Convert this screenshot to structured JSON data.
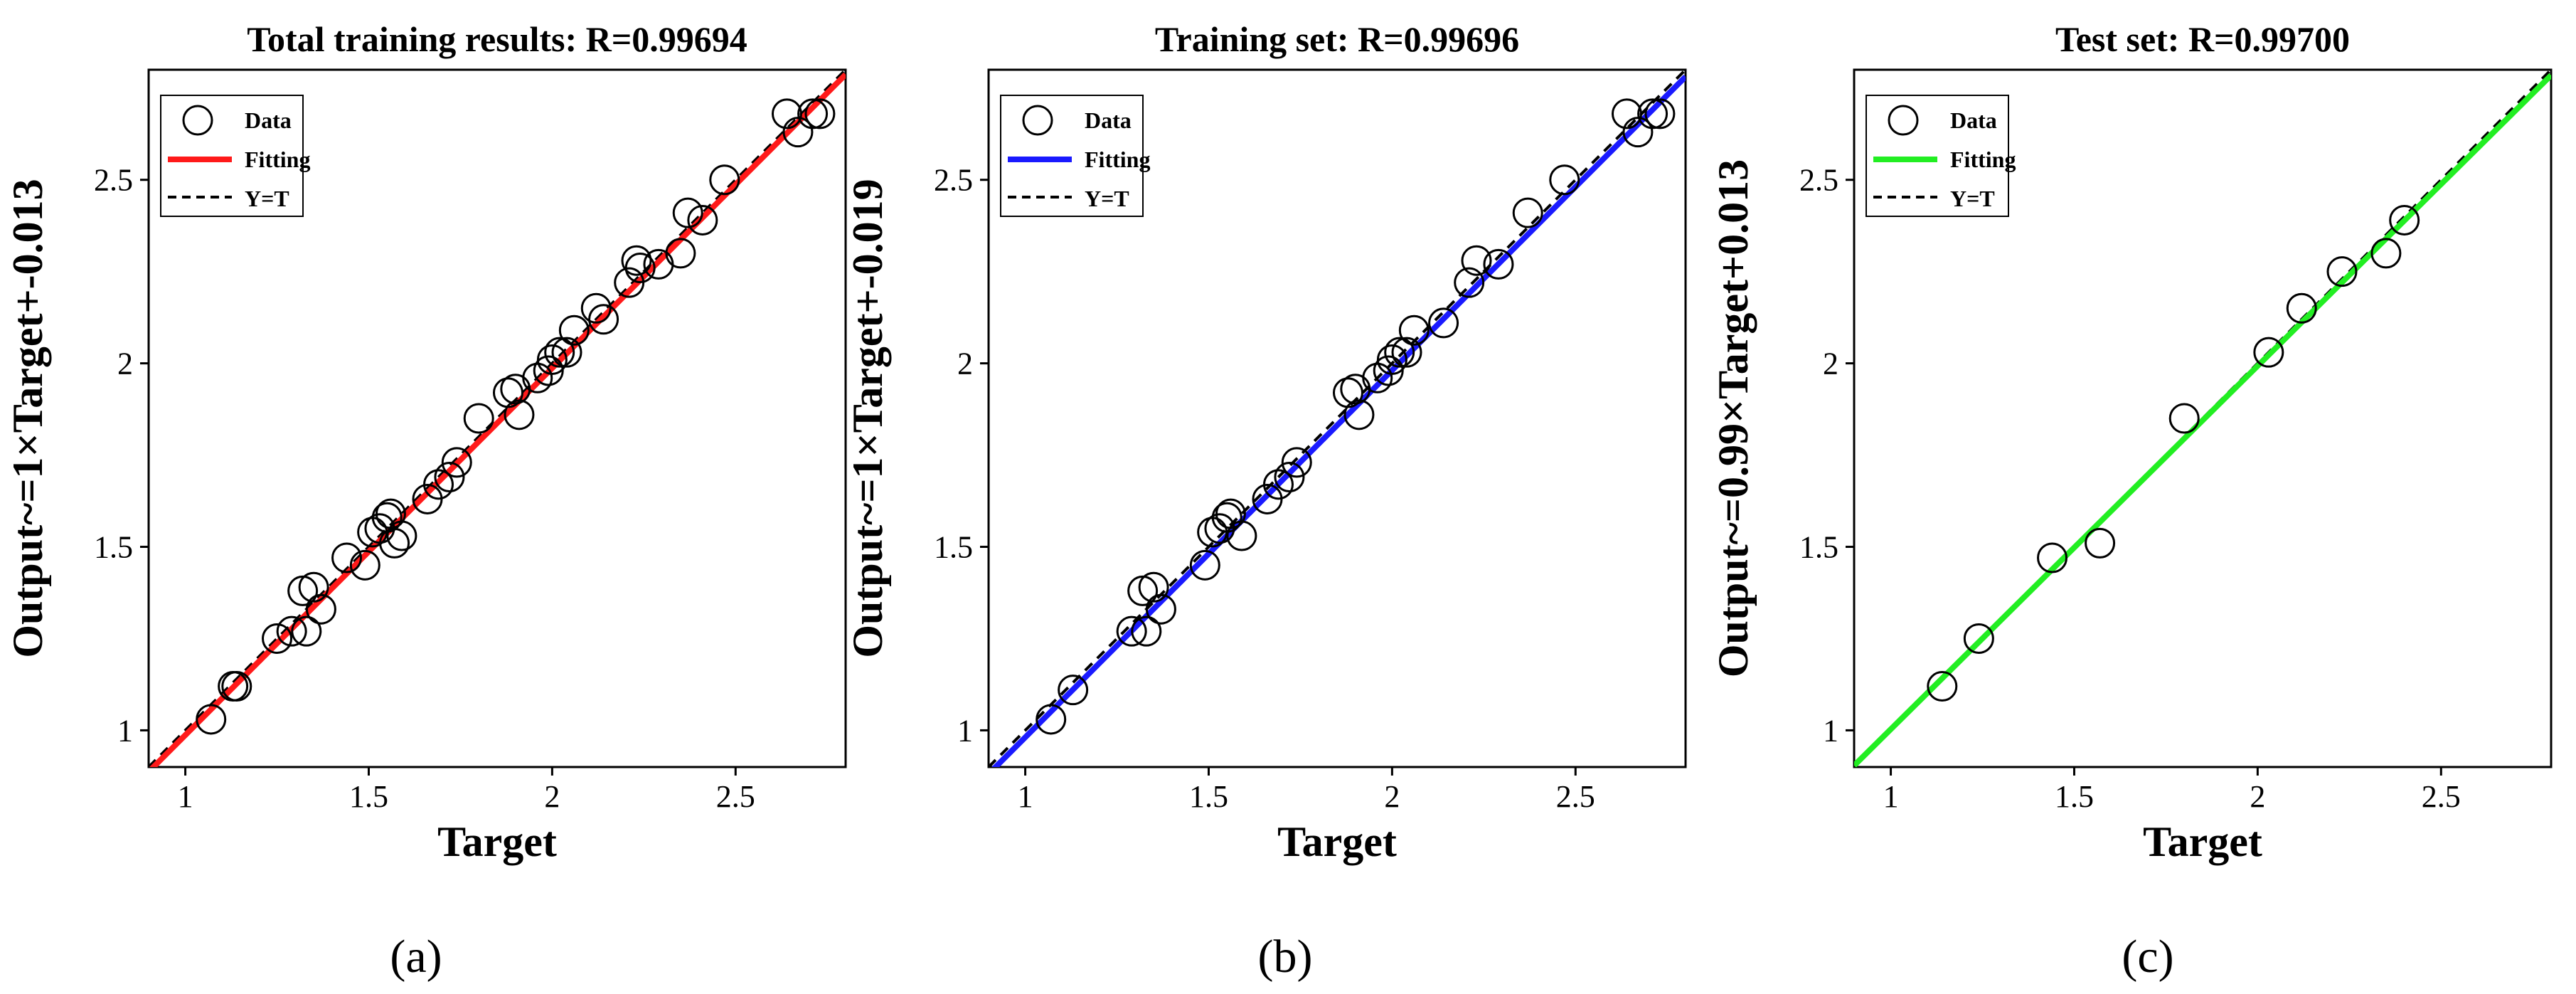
{
  "figure": {
    "panels": [
      {
        "panel_label": "(a)",
        "fit_color": "#ff1a1a"
      },
      {
        "panel_label": "(b)",
        "fit_color": "#1a1aff"
      },
      {
        "panel_label": "(c)",
        "fit_color": "#22ee22"
      }
    ]
  },
  "chart_data": [
    {
      "type": "scatter",
      "title": "Total training results: R=0.99694",
      "xlabel": "Target",
      "ylabel": "Output~=1×Target+-0.013",
      "xlim": [
        0.9,
        2.8
      ],
      "ylim": [
        0.9,
        2.8
      ],
      "xticks": [
        1,
        1.5,
        2,
        2.5
      ],
      "yticks": [
        1,
        1.5,
        2,
        2.5
      ],
      "xtick_labels": [
        "1",
        "1.5",
        "2",
        "2.5"
      ],
      "ytick_labels": [
        "1",
        "1.5",
        "2",
        "2.5"
      ],
      "legend": {
        "placement": "top-left",
        "entries": [
          "Data",
          "Fitting",
          "Y=T"
        ]
      },
      "fit": {
        "slope": 1,
        "intercept": -0.013
      },
      "points": [
        [
          1.07,
          1.03
        ],
        [
          1.13,
          1.12
        ],
        [
          1.14,
          1.12
        ],
        [
          1.25,
          1.25
        ],
        [
          1.29,
          1.27
        ],
        [
          1.32,
          1.38
        ],
        [
          1.33,
          1.27
        ],
        [
          1.35,
          1.39
        ],
        [
          1.37,
          1.33
        ],
        [
          1.44,
          1.47
        ],
        [
          1.49,
          1.45
        ],
        [
          1.51,
          1.54
        ],
        [
          1.53,
          1.55
        ],
        [
          1.55,
          1.58
        ],
        [
          1.56,
          1.59
        ],
        [
          1.57,
          1.51
        ],
        [
          1.59,
          1.53
        ],
        [
          1.66,
          1.63
        ],
        [
          1.69,
          1.67
        ],
        [
          1.72,
          1.69
        ],
        [
          1.74,
          1.73
        ],
        [
          1.8,
          1.85
        ],
        [
          1.88,
          1.92
        ],
        [
          1.9,
          1.93
        ],
        [
          1.91,
          1.86
        ],
        [
          1.96,
          1.96
        ],
        [
          1.99,
          1.98
        ],
        [
          2.0,
          2.01
        ],
        [
          2.02,
          2.03
        ],
        [
          2.04,
          2.03
        ],
        [
          2.06,
          2.09
        ],
        [
          2.12,
          2.15
        ],
        [
          2.14,
          2.12
        ],
        [
          2.21,
          2.22
        ],
        [
          2.23,
          2.28
        ],
        [
          2.24,
          2.26
        ],
        [
          2.29,
          2.27
        ],
        [
          2.35,
          2.3
        ],
        [
          2.37,
          2.41
        ],
        [
          2.41,
          2.39
        ],
        [
          2.47,
          2.5
        ],
        [
          2.64,
          2.68
        ],
        [
          2.67,
          2.63
        ],
        [
          2.71,
          2.68
        ],
        [
          2.73,
          2.68
        ]
      ]
    },
    {
      "type": "scatter",
      "title": "Training set: R=0.99696",
      "xlabel": "Target",
      "ylabel": "Output~=1×Target+-0.019",
      "xlim": [
        0.9,
        2.8
      ],
      "ylim": [
        0.9,
        2.8
      ],
      "xticks": [
        1,
        1.5,
        2,
        2.5
      ],
      "yticks": [
        1,
        1.5,
        2,
        2.5
      ],
      "xtick_labels": [
        "1",
        "1.5",
        "2",
        "2.5"
      ],
      "ytick_labels": [
        "1",
        "1.5",
        "2",
        "2.5"
      ],
      "legend": {
        "placement": "top-left",
        "entries": [
          "Data",
          "Fitting",
          "Y=T"
        ]
      },
      "fit": {
        "slope": 1,
        "intercept": -0.019
      },
      "points": [
        [
          1.07,
          1.03
        ],
        [
          1.13,
          1.11
        ],
        [
          1.29,
          1.27
        ],
        [
          1.32,
          1.38
        ],
        [
          1.33,
          1.27
        ],
        [
          1.35,
          1.39
        ],
        [
          1.37,
          1.33
        ],
        [
          1.49,
          1.45
        ],
        [
          1.51,
          1.54
        ],
        [
          1.53,
          1.55
        ],
        [
          1.55,
          1.58
        ],
        [
          1.56,
          1.59
        ],
        [
          1.59,
          1.53
        ],
        [
          1.66,
          1.63
        ],
        [
          1.69,
          1.67
        ],
        [
          1.72,
          1.69
        ],
        [
          1.74,
          1.73
        ],
        [
          1.88,
          1.92
        ],
        [
          1.9,
          1.93
        ],
        [
          1.91,
          1.86
        ],
        [
          1.96,
          1.96
        ],
        [
          1.99,
          1.98
        ],
        [
          2.0,
          2.01
        ],
        [
          2.02,
          2.03
        ],
        [
          2.04,
          2.03
        ],
        [
          2.06,
          2.09
        ],
        [
          2.14,
          2.11
        ],
        [
          2.21,
          2.22
        ],
        [
          2.23,
          2.28
        ],
        [
          2.29,
          2.27
        ],
        [
          2.37,
          2.41
        ],
        [
          2.47,
          2.5
        ],
        [
          2.64,
          2.68
        ],
        [
          2.67,
          2.63
        ],
        [
          2.71,
          2.68
        ],
        [
          2.73,
          2.68
        ]
      ]
    },
    {
      "type": "scatter",
      "title": "Test set: R=0.99700",
      "xlabel": "Target",
      "ylabel": "Output~=0.99×Target+0.013",
      "xlim": [
        0.9,
        2.8
      ],
      "ylim": [
        0.9,
        2.8
      ],
      "xticks": [
        1,
        1.5,
        2,
        2.5
      ],
      "yticks": [
        1,
        1.5,
        2,
        2.5
      ],
      "xtick_labels": [
        "1",
        "1.5",
        "2",
        "2.5"
      ],
      "ytick_labels": [
        "1",
        "1.5",
        "2",
        "2.5"
      ],
      "legend": {
        "placement": "top-left",
        "entries": [
          "Data",
          "Fitting",
          "Y=T"
        ]
      },
      "fit": {
        "slope": 0.99,
        "intercept": 0.013
      },
      "points": [
        [
          1.14,
          1.12
        ],
        [
          1.24,
          1.25
        ],
        [
          1.44,
          1.47
        ],
        [
          1.57,
          1.51
        ],
        [
          1.8,
          1.85
        ],
        [
          2.03,
          2.03
        ],
        [
          2.12,
          2.15
        ],
        [
          2.23,
          2.25
        ],
        [
          2.35,
          2.3
        ],
        [
          2.4,
          2.39
        ]
      ]
    }
  ]
}
